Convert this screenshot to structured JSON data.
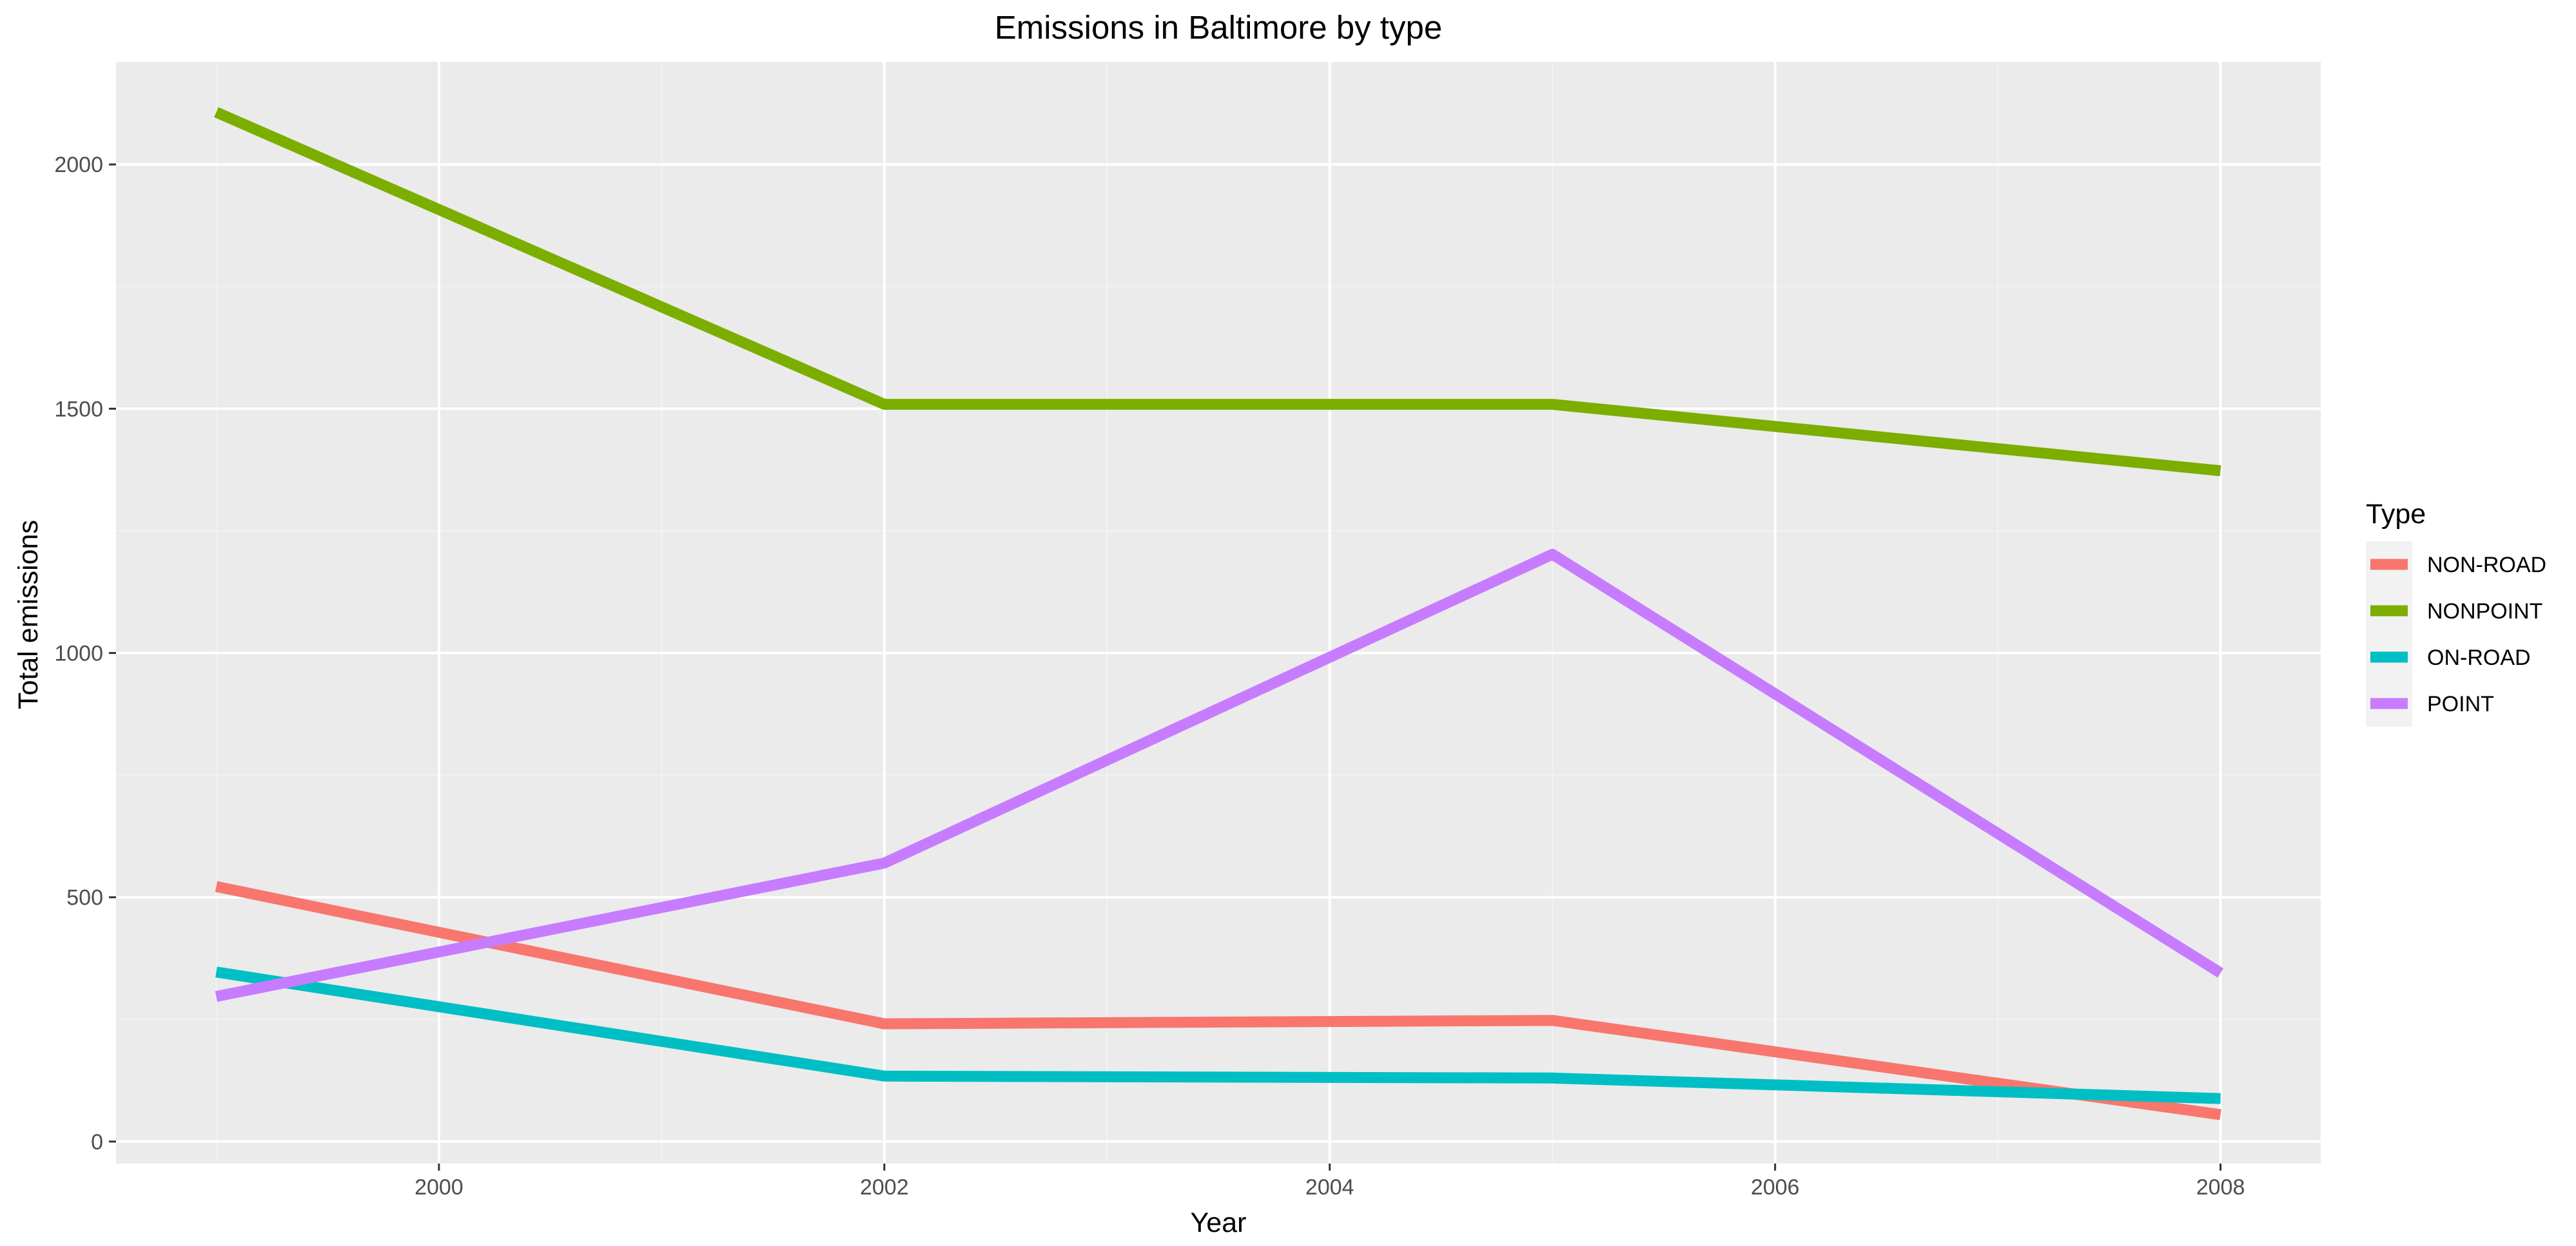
{
  "chart_data": {
    "type": "line",
    "title": "Emissions in Baltimore by type",
    "xlabel": "Year",
    "ylabel": "Total emissions",
    "x": [
      1999,
      2002,
      2005,
      2008
    ],
    "xlim": [
      1998.55,
      2008.45
    ],
    "ylim": [
      -45,
      2210
    ],
    "xticks": [
      2000,
      2002,
      2004,
      2006,
      2008
    ],
    "yticks": [
      0,
      500,
      1000,
      1500,
      2000
    ],
    "grid": true,
    "legend": {
      "title": "Type",
      "position": "right"
    },
    "series": [
      {
        "name": "NON-ROAD",
        "color": "#F8766D",
        "values": [
          522,
          241,
          248,
          55
        ]
      },
      {
        "name": "NONPOINT",
        "color": "#7CAE00",
        "values": [
          2107,
          1509,
          1509,
          1373
        ]
      },
      {
        "name": "ON-ROAD",
        "color": "#00BFC4",
        "values": [
          347,
          134,
          130,
          88
        ]
      },
      {
        "name": "POINT",
        "color": "#C77CFF",
        "values": [
          297,
          570,
          1202,
          345
        ]
      }
    ]
  },
  "colors": {
    "panel_background": "#EBEBEB",
    "grid_major": "#FFFFFF",
    "grid_minor": "#F2F2F2",
    "legend_key_background": "#F2F2F2"
  }
}
